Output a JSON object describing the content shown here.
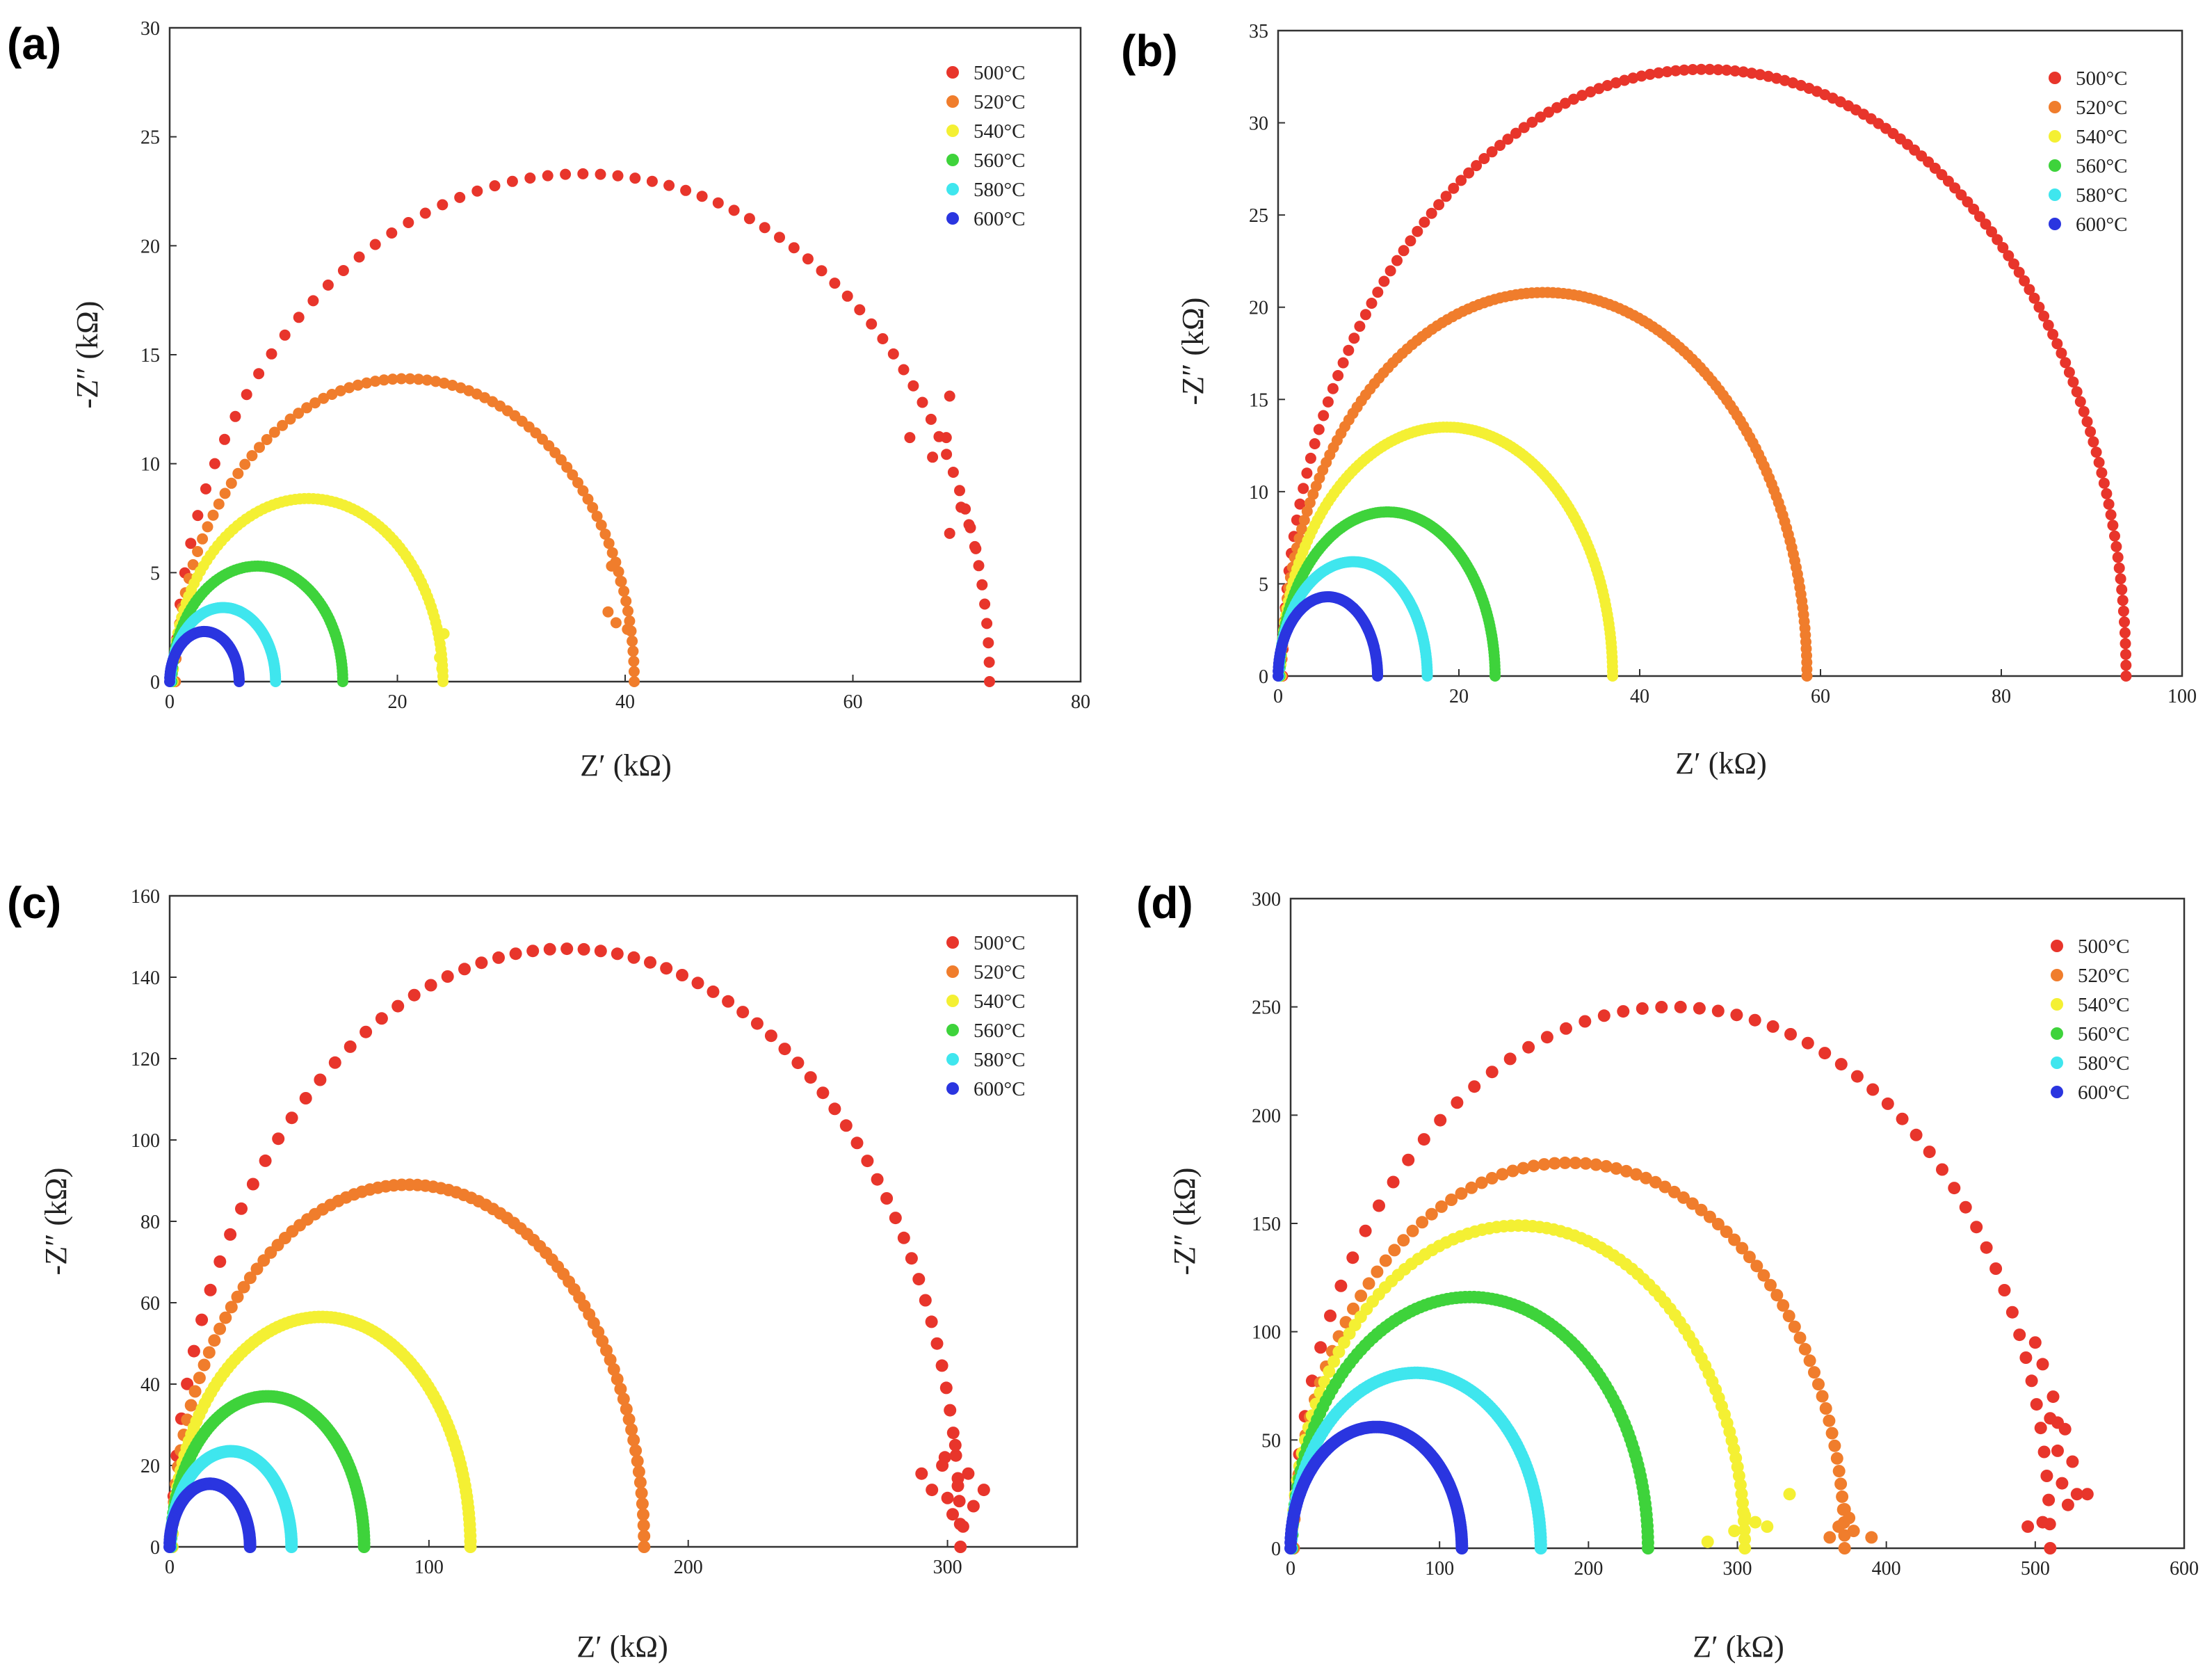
{
  "figure": {
    "colors": {
      "500°C": "#e8352b",
      "520°C": "#f07d2c",
      "540°C": "#f4f033",
      "560°C": "#3ed33b",
      "580°C": "#3fe6ee",
      "600°C": "#2a35e0"
    }
  },
  "chart_data": [
    {
      "panel": "(a)",
      "type": "scatter",
      "title": "",
      "xlabel": "Z′ (kΩ)",
      "ylabel": "-Z″ (kΩ)",
      "xlim": [
        0,
        80
      ],
      "ylim": [
        0,
        30
      ],
      "xticks": [
        0,
        20,
        40,
        60,
        80
      ],
      "yticks": [
        0,
        5,
        10,
        15,
        20,
        25,
        30
      ],
      "grid": false,
      "legend": "top-right",
      "series": [
        {
          "name": "500°C",
          "r0": 0.5,
          "end": 72,
          "peak": 23.3,
          "n": 70,
          "scatter": [
            [
              65,
              11.2
            ],
            [
              67,
              10.3
            ],
            [
              68.5,
              13.1
            ],
            [
              68.2,
              11.2
            ],
            [
              69.5,
              8.0
            ],
            [
              68.5,
              6.8
            ],
            [
              70.2,
              7.2
            ],
            [
              70.8,
              6.1
            ]
          ]
        },
        {
          "name": "520°C",
          "r0": 0.5,
          "end": 40.8,
          "peak": 13.9,
          "n": 80,
          "scatter": [
            [
              38.5,
              3.2
            ],
            [
              39.2,
              2.7
            ],
            [
              40.2,
              2.4
            ],
            [
              39.6,
              4.6
            ],
            [
              38.8,
              5.3
            ]
          ]
        },
        {
          "name": "540°C",
          "r0": 0.3,
          "end": 24,
          "peak": 8.4,
          "n": 90,
          "scatter": [
            [
              23.7,
              1.1
            ],
            [
              23.9,
              0.6
            ],
            [
              24.1,
              2.2
            ]
          ]
        },
        {
          "name": "560°C",
          "r0": 0.2,
          "end": 15.2,
          "peak": 5.3,
          "n": 90,
          "scatter": []
        },
        {
          "name": "580°C",
          "r0": 0.1,
          "end": 9.3,
          "peak": 3.4,
          "n": 80,
          "scatter": []
        },
        {
          "name": "600°C",
          "r0": 0.0,
          "end": 6.1,
          "peak": 2.3,
          "n": 80,
          "scatter": []
        }
      ]
    },
    {
      "panel": "(b)",
      "type": "scatter",
      "title": "",
      "xlabel": "Z′ (kΩ)",
      "ylabel": "-Z″ (kΩ)",
      "xlim": [
        0,
        100
      ],
      "ylim": [
        0,
        35
      ],
      "xticks": [
        0,
        20,
        40,
        60,
        80,
        100
      ],
      "yticks": [
        0,
        5,
        10,
        15,
        20,
        25,
        30,
        35
      ],
      "grid": false,
      "legend": "top-right",
      "series": [
        {
          "name": "500°C",
          "r0": 0.5,
          "end": 93.8,
          "peak": 32.9,
          "n": 150,
          "scatter": []
        },
        {
          "name": "520°C",
          "r0": 0.4,
          "end": 58.5,
          "peak": 20.8,
          "n": 150,
          "scatter": []
        },
        {
          "name": "540°C",
          "r0": 0.3,
          "end": 37,
          "peak": 13.5,
          "n": 140,
          "scatter": []
        },
        {
          "name": "560°C",
          "r0": 0.2,
          "end": 24,
          "peak": 8.9,
          "n": 130,
          "scatter": []
        },
        {
          "name": "580°C",
          "r0": 0.1,
          "end": 16.5,
          "peak": 6.2,
          "n": 110,
          "scatter": []
        },
        {
          "name": "600°C",
          "r0": 0.0,
          "end": 11,
          "peak": 4.3,
          "n": 100,
          "scatter": []
        }
      ]
    },
    {
      "panel": "(c)",
      "type": "scatter",
      "title": "",
      "xlabel": "Z′ (kΩ)",
      "ylabel": "-Z″ (kΩ)",
      "xlim": [
        0,
        350
      ],
      "ylim": [
        0,
        160
      ],
      "xticks": [
        0,
        100,
        200,
        300
      ],
      "yticks": [
        0,
        20,
        40,
        60,
        80,
        100,
        120,
        140,
        160
      ],
      "grid": false,
      "legend": "top-right",
      "series": [
        {
          "name": "500°C",
          "r0": 1,
          "end": 305,
          "peak": 147,
          "n": 70,
          "scatter": [
            [
              290,
              18
            ],
            [
              294,
              14
            ],
            [
              298,
              20
            ],
            [
              300,
              12
            ],
            [
              302,
              8
            ],
            [
              304,
              15
            ],
            [
              306,
              5
            ],
            [
              308,
              18
            ],
            [
              310,
              10
            ],
            [
              314,
              14
            ],
            [
              299,
              22
            ],
            [
              303,
              25
            ]
          ]
        },
        {
          "name": "520°C",
          "r0": 1,
          "end": 183,
          "peak": 89,
          "n": 90,
          "scatter": []
        },
        {
          "name": "540°C",
          "r0": 1,
          "end": 116,
          "peak": 56.5,
          "n": 110,
          "scatter": []
        },
        {
          "name": "560°C",
          "r0": 0.5,
          "end": 75,
          "peak": 37,
          "n": 110,
          "scatter": []
        },
        {
          "name": "580°C",
          "r0": 0.3,
          "end": 47,
          "peak": 23.5,
          "n": 100,
          "scatter": []
        },
        {
          "name": "600°C",
          "r0": 0,
          "end": 31,
          "peak": 15.5,
          "n": 100,
          "scatter": []
        }
      ]
    },
    {
      "panel": "(d)",
      "type": "scatter",
      "title": "",
      "xlabel": "Z′ (kΩ)",
      "ylabel": "-Z″ (kΩ)",
      "xlim": [
        0,
        600
      ],
      "ylim": [
        0,
        300
      ],
      "xticks": [
        0,
        100,
        200,
        300,
        400,
        500,
        600
      ],
      "yticks": [
        0,
        50,
        100,
        150,
        200,
        250,
        300
      ],
      "grid": false,
      "legend": "top-right",
      "series": [
        {
          "name": "500°C",
          "r0": 2,
          "end": 510,
          "peak": 250,
          "n": 60,
          "scatter": [
            [
              495,
              10
            ],
            [
              500,
              95
            ],
            [
              505,
              85
            ],
            [
              510,
              60
            ],
            [
              512,
              70
            ],
            [
              515,
              45
            ],
            [
              518,
              30
            ],
            [
              520,
              55
            ],
            [
              522,
              20
            ],
            [
              525,
              40
            ],
            [
              528,
              25
            ],
            [
              535,
              25
            ],
            [
              505,
              12
            ],
            [
              515,
              58
            ]
          ]
        },
        {
          "name": "520°C",
          "r0": 2,
          "end": 372,
          "peak": 178,
          "n": 80,
          "scatter": [
            [
              362,
              5
            ],
            [
              368,
              10
            ],
            [
              372,
              18
            ],
            [
              375,
              14
            ],
            [
              390,
              5
            ],
            [
              378,
              8
            ]
          ]
        },
        {
          "name": "540°C",
          "r0": 1,
          "end": 305,
          "peak": 149,
          "n": 95,
          "scatter": [
            [
              280,
              3
            ],
            [
              298,
              8
            ],
            [
              305,
              15
            ],
            [
              312,
              12
            ],
            [
              320,
              10
            ],
            [
              335,
              25
            ]
          ]
        },
        {
          "name": "560°C",
          "r0": 1,
          "end": 240,
          "peak": 116,
          "n": 120,
          "scatter": []
        },
        {
          "name": "580°C",
          "r0": 0.5,
          "end": 168,
          "peak": 81,
          "n": 130,
          "scatter": []
        },
        {
          "name": "600°C",
          "r0": 0,
          "end": 115,
          "peak": 56,
          "n": 140,
          "scatter": []
        }
      ]
    }
  ]
}
